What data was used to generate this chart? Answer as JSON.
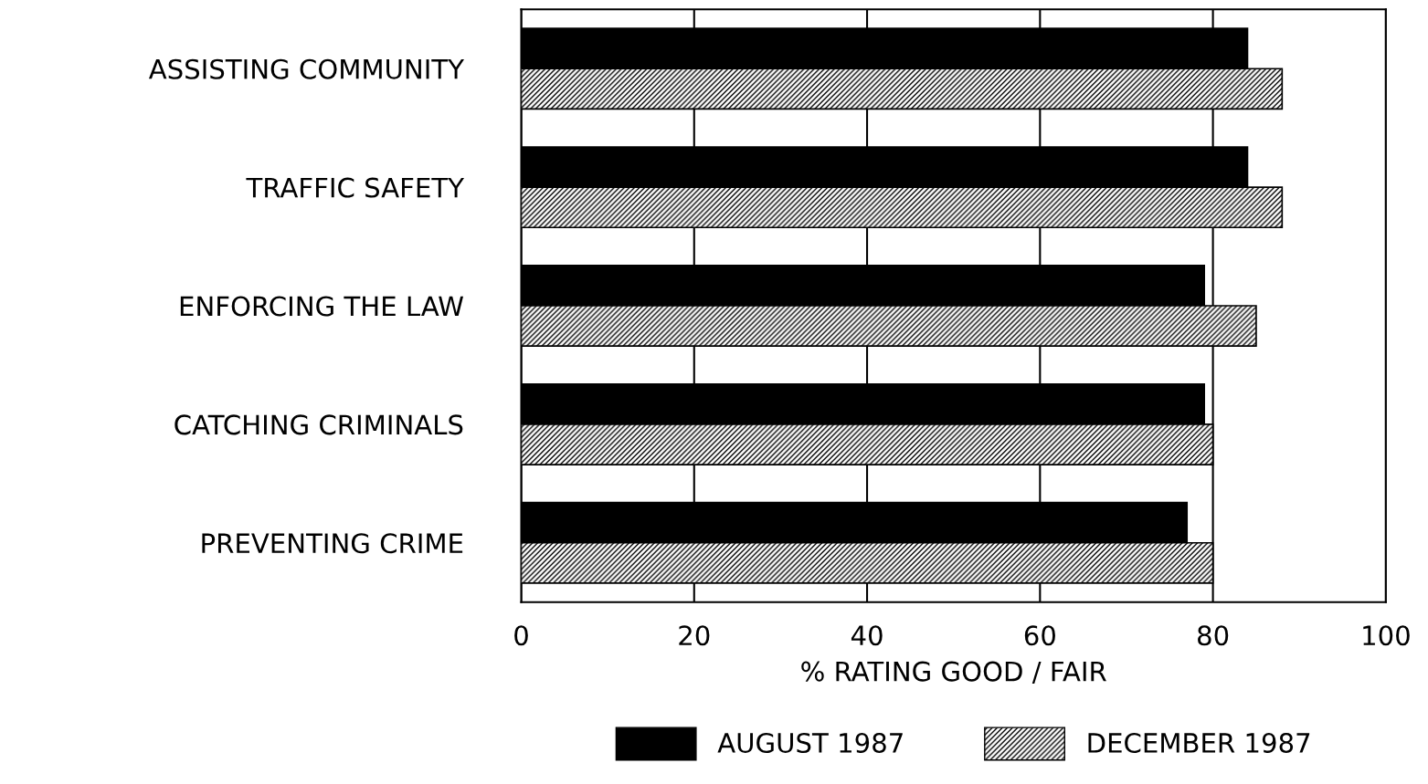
{
  "chart_data": {
    "type": "bar",
    "orientation": "horizontal",
    "xlabel": "% RATING GOOD / FAIR",
    "categories": [
      "ASSISTING COMMUNITY",
      "TRAFFIC SAFETY",
      "ENFORCING THE LAW",
      "CATCHING CRIMINALS",
      "PREVENTING CRIME"
    ],
    "series": [
      {
        "name": "AUGUST 1987",
        "color": "#000000",
        "values": [
          84,
          84,
          79,
          79,
          77
        ]
      },
      {
        "name": "DECEMBER 1987",
        "color": "#000000",
        "values": [
          88,
          88,
          85,
          80,
          80
        ]
      }
    ],
    "xlim": [
      0,
      100
    ],
    "xticks": [
      0,
      20,
      40,
      60,
      80,
      100
    ],
    "grid": "x",
    "legend": "bottom"
  }
}
